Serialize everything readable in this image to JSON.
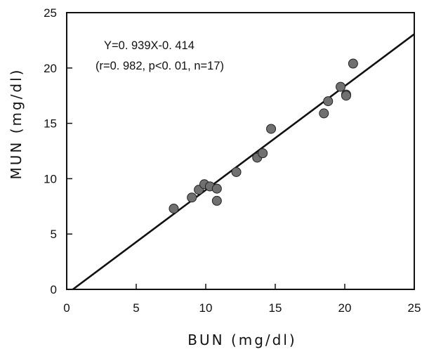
{
  "chart_data": {
    "type": "scatter",
    "title": "",
    "xlabel": "BUN (mg/dl)",
    "ylabel": "MUN (mg/dl)",
    "xlim": [
      0,
      25
    ],
    "ylim": [
      0,
      25
    ],
    "xticks": [
      0,
      5,
      10,
      15,
      20,
      25
    ],
    "yticks": [
      0,
      5,
      10,
      15,
      20,
      25
    ],
    "grid": false,
    "annotations": [
      "Y=0. 939X-0. 414",
      "(r=0. 982, p<0. 01, n=17)"
    ],
    "regression": {
      "slope": 0.939,
      "intercept": -0.414
    },
    "series": [
      {
        "points": [
          {
            "x": 7.7,
            "y": 7.3
          },
          {
            "x": 9.0,
            "y": 8.3
          },
          {
            "x": 9.5,
            "y": 9.0
          },
          {
            "x": 9.9,
            "y": 9.5
          },
          {
            "x": 10.3,
            "y": 9.3
          },
          {
            "x": 10.8,
            "y": 9.1
          },
          {
            "x": 10.8,
            "y": 8.0
          },
          {
            "x": 12.2,
            "y": 10.6
          },
          {
            "x": 13.7,
            "y": 11.9
          },
          {
            "x": 14.1,
            "y": 12.3
          },
          {
            "x": 14.7,
            "y": 14.5
          },
          {
            "x": 18.5,
            "y": 15.9
          },
          {
            "x": 18.8,
            "y": 17.0
          },
          {
            "x": 19.7,
            "y": 18.3
          },
          {
            "x": 20.1,
            "y": 17.6
          },
          {
            "x": 20.6,
            "y": 20.4
          },
          {
            "x": 20.1,
            "y": 17.5
          }
        ],
        "color": "#707070"
      }
    ]
  }
}
